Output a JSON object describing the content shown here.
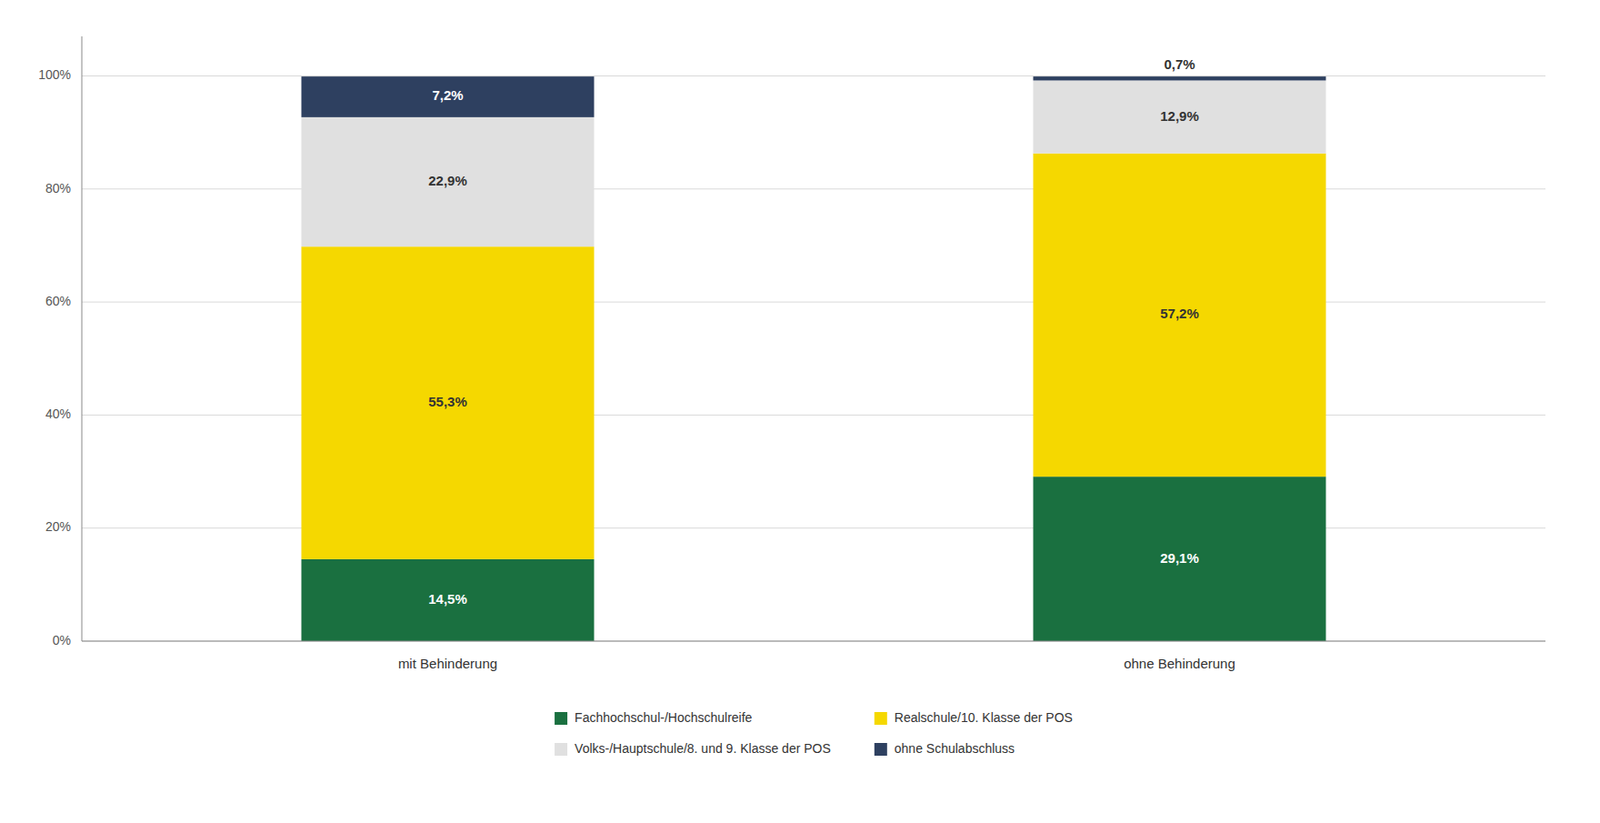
{
  "chart_data": {
    "type": "bar",
    "stacked": true,
    "data_labels": true,
    "grid": true,
    "legend": "bottom",
    "categories": [
      "mit Behinderung",
      "ohne Behinderung"
    ],
    "series": [
      {
        "name": "Fachhochschul-/Hochschulreife",
        "color": "#1a7040",
        "values": [
          14.5,
          29.1
        ],
        "value_labels": [
          "14,5%",
          "29,1%"
        ]
      },
      {
        "name": "Realschule/10. Klasse der POS",
        "color": "#f5d800",
        "values": [
          55.3,
          57.2
        ],
        "value_labels": [
          "55,3%",
          "57,2%"
        ]
      },
      {
        "name": "Volks-/Hauptschule/8. und 9. Klasse der POS",
        "color": "#e0e0e0",
        "values": [
          22.9,
          12.9
        ],
        "value_labels": [
          "22,9%",
          "12,9%"
        ]
      },
      {
        "name": "ohne Schulabschluss",
        "color": "#2e4060",
        "values": [
          7.2,
          0.7
        ],
        "value_labels": [
          "7,2%",
          "0,7%"
        ]
      }
    ],
    "ylim": [
      0,
      107
    ],
    "yticks": [
      {
        "value": 0,
        "label": "0%"
      },
      {
        "value": 20,
        "label": "20%"
      },
      {
        "value": 40,
        "label": "40%"
      },
      {
        "value": 60,
        "label": "60%"
      },
      {
        "value": 80,
        "label": "80%"
      },
      {
        "value": 100,
        "label": "100%"
      }
    ]
  }
}
